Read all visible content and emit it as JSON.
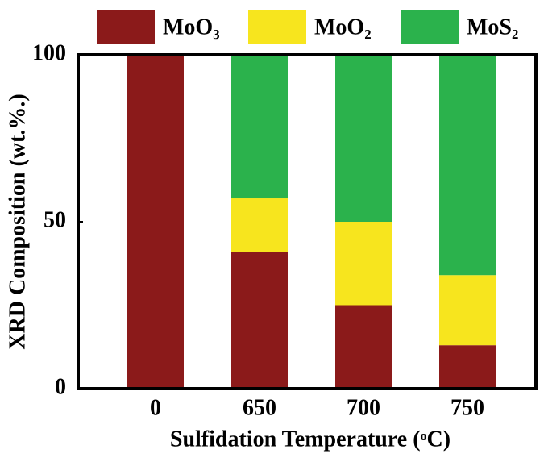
{
  "chart_data": {
    "type": "stacked_bar",
    "x_label": "Sulfidation Temperature (ᵒC)",
    "y_label": "XRD Composition (wt.%.)",
    "categories": [
      "0",
      "650",
      "700",
      "750"
    ],
    "series": [
      {
        "name": "MoO₃",
        "color": "#8b1a1a",
        "values": [
          100,
          41,
          25,
          13
        ]
      },
      {
        "name": "MoO₂",
        "color": "#f7e51e",
        "values": [
          0,
          16,
          25,
          21
        ]
      },
      {
        "name": "MoS₂",
        "color": "#2bb24c",
        "values": [
          0,
          43,
          50,
          66
        ]
      }
    ],
    "ylim": [
      0,
      100
    ],
    "yticks": [
      0,
      50,
      100
    ],
    "grid": false
  }
}
